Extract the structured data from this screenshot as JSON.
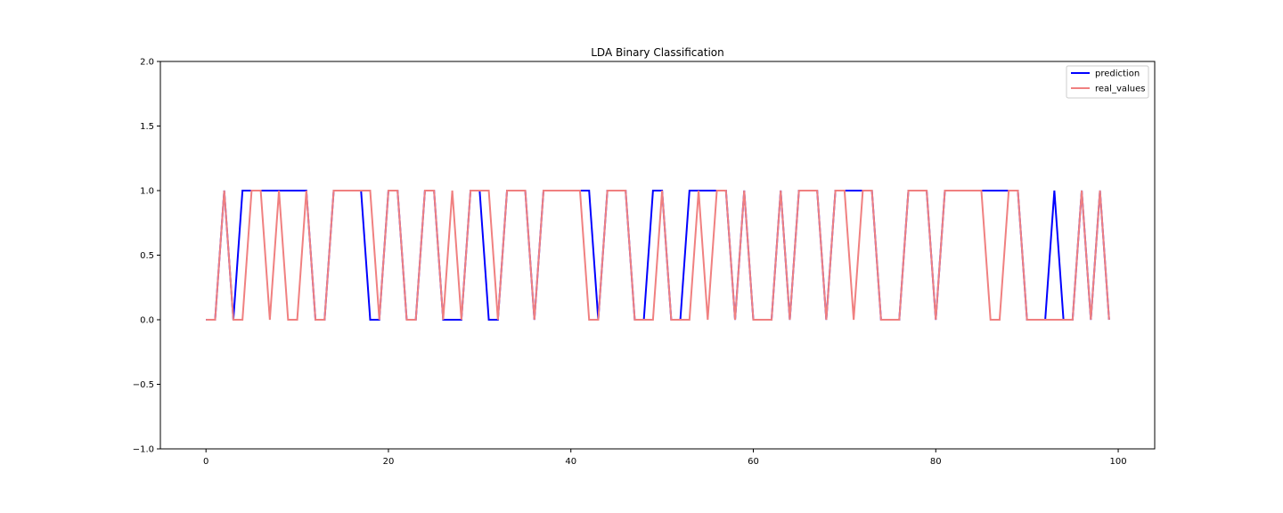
{
  "chart_data": {
    "type": "line",
    "title": "LDA Binary Classification",
    "xlabel": "",
    "ylabel": "",
    "xlim": [
      -5,
      104
    ],
    "ylim": [
      -1.0,
      2.0
    ],
    "x_ticks": [
      0,
      20,
      40,
      60,
      80,
      100
    ],
    "x_tick_labels": [
      "0",
      "20",
      "40",
      "60",
      "80",
      "100"
    ],
    "y_ticks": [
      -1.0,
      -0.5,
      0.0,
      0.5,
      1.0,
      1.5,
      2.0
    ],
    "y_tick_labels": [
      "−1.0",
      "−0.5",
      "0.0",
      "0.5",
      "1.0",
      "1.5",
      "2.0"
    ],
    "grid": false,
    "legend_position": "upper right",
    "x": [
      0,
      1,
      2,
      3,
      4,
      5,
      6,
      7,
      8,
      9,
      10,
      11,
      12,
      13,
      14,
      15,
      16,
      17,
      18,
      19,
      20,
      21,
      22,
      23,
      24,
      25,
      26,
      27,
      28,
      29,
      30,
      31,
      32,
      33,
      34,
      35,
      36,
      37,
      38,
      39,
      40,
      41,
      42,
      43,
      44,
      45,
      46,
      47,
      48,
      49,
      50,
      51,
      52,
      53,
      54,
      55,
      56,
      57,
      58,
      59,
      60,
      61,
      62,
      63,
      64,
      65,
      66,
      67,
      68,
      69,
      70,
      71,
      72,
      73,
      74,
      75,
      76,
      77,
      78,
      79,
      80,
      81,
      82,
      83,
      84,
      85,
      86,
      87,
      88,
      89,
      90,
      91,
      92,
      93,
      94,
      95,
      96,
      97,
      98,
      99
    ],
    "series": [
      {
        "name": "prediction",
        "color": "#0000ff",
        "values": [
          0,
          0,
          1,
          0,
          1,
          1,
          1,
          1,
          1,
          1,
          1,
          1,
          0,
          0,
          1,
          1,
          1,
          1,
          0,
          0,
          1,
          1,
          0,
          0,
          1,
          1,
          0,
          0,
          0,
          1,
          1,
          0,
          0,
          1,
          1,
          1,
          0,
          1,
          1,
          1,
          1,
          1,
          1,
          0,
          1,
          1,
          1,
          0,
          0,
          1,
          1,
          0,
          0,
          1,
          1,
          1,
          1,
          1,
          0,
          1,
          0,
          0,
          0,
          1,
          0,
          1,
          1,
          1,
          0,
          1,
          1,
          1,
          1,
          1,
          0,
          0,
          0,
          1,
          1,
          1,
          0,
          1,
          1,
          1,
          1,
          1,
          1,
          1,
          1,
          1,
          0,
          0,
          0,
          1,
          0,
          0,
          1,
          0,
          1,
          0
        ]
      },
      {
        "name": "real_values",
        "color": "#f08080",
        "values": [
          0,
          0,
          1,
          0,
          0,
          1,
          1,
          0,
          1,
          0,
          0,
          1,
          0,
          0,
          1,
          1,
          1,
          1,
          1,
          0,
          1,
          1,
          0,
          0,
          1,
          1,
          0,
          1,
          0,
          1,
          1,
          1,
          0,
          1,
          1,
          1,
          0,
          1,
          1,
          1,
          1,
          1,
          0,
          0,
          1,
          1,
          1,
          0,
          0,
          0,
          1,
          0,
          0,
          0,
          1,
          0,
          1,
          1,
          0,
          1,
          0,
          0,
          0,
          1,
          0,
          1,
          1,
          1,
          0,
          1,
          1,
          0,
          1,
          1,
          0,
          0,
          0,
          1,
          1,
          1,
          0,
          1,
          1,
          1,
          1,
          1,
          0,
          0,
          1,
          1,
          0,
          0,
          0,
          0,
          0,
          0,
          1,
          0,
          1,
          0
        ]
      }
    ]
  }
}
